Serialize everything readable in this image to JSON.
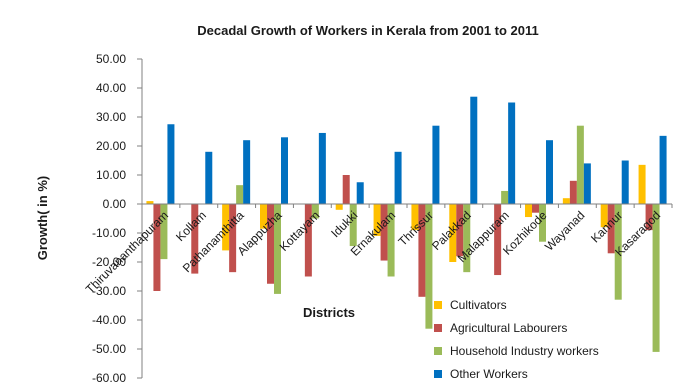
{
  "chart_data": {
    "type": "bar",
    "title": "Decadal Growth of Workers in Kerala from 2001 to 2011",
    "xlabel": "Districts",
    "ylabel": "Growth( in %)",
    "ylim": [
      -60,
      50
    ],
    "yticks": [
      "50.00",
      "40.00",
      "30.00",
      "20.00",
      "10.00",
      "0.00",
      "-10.00",
      "-20.00",
      "-30.00",
      "-40.00",
      "-50.00",
      "-60.00"
    ],
    "grid": false,
    "legend_position": "bottom-right",
    "categories": [
      "Thiruvananthapuram",
      "Kollam",
      "Pathanamthitta",
      "Alappuzha",
      "Kottayam",
      "Idukki",
      "Ernakulam",
      "Thrissur",
      "Palakkad",
      "Malappuram",
      "Kozhikode",
      "Wayanad",
      "Kannur",
      "Kasaragod"
    ],
    "series": [
      {
        "name": "Cultivators",
        "color": "#ffc000",
        "values": [
          1.0,
          0.0,
          -16.0,
          -8.5,
          0.0,
          -2.0,
          -11.0,
          -9.0,
          -20.0,
          0.0,
          -4.5,
          2.0,
          -8.0,
          13.5
        ]
      },
      {
        "name": "Agricultural Labourers",
        "color": "#c0504d",
        "values": [
          -30.0,
          -24.0,
          -23.5,
          -27.5,
          -25.0,
          10.0,
          -19.5,
          -32.0,
          -18.0,
          -24.5,
          -3.0,
          8.0,
          -17.0,
          -9.0
        ]
      },
      {
        "name": "Household Industry workers",
        "color": "#9bbb59",
        "values": [
          -19.0,
          0.0,
          6.5,
          -31.0,
          -5.0,
          -14.5,
          -25.0,
          -43.0,
          -23.5,
          4.5,
          -13.0,
          27.0,
          -33.0,
          -51.0
        ]
      },
      {
        "name": "Other Workers",
        "color": "#0070c0",
        "values": [
          27.5,
          18.0,
          22.0,
          23.0,
          24.5,
          7.5,
          18.0,
          27.0,
          37.0,
          35.0,
          22.0,
          14.0,
          15.0,
          23.5
        ]
      }
    ]
  }
}
